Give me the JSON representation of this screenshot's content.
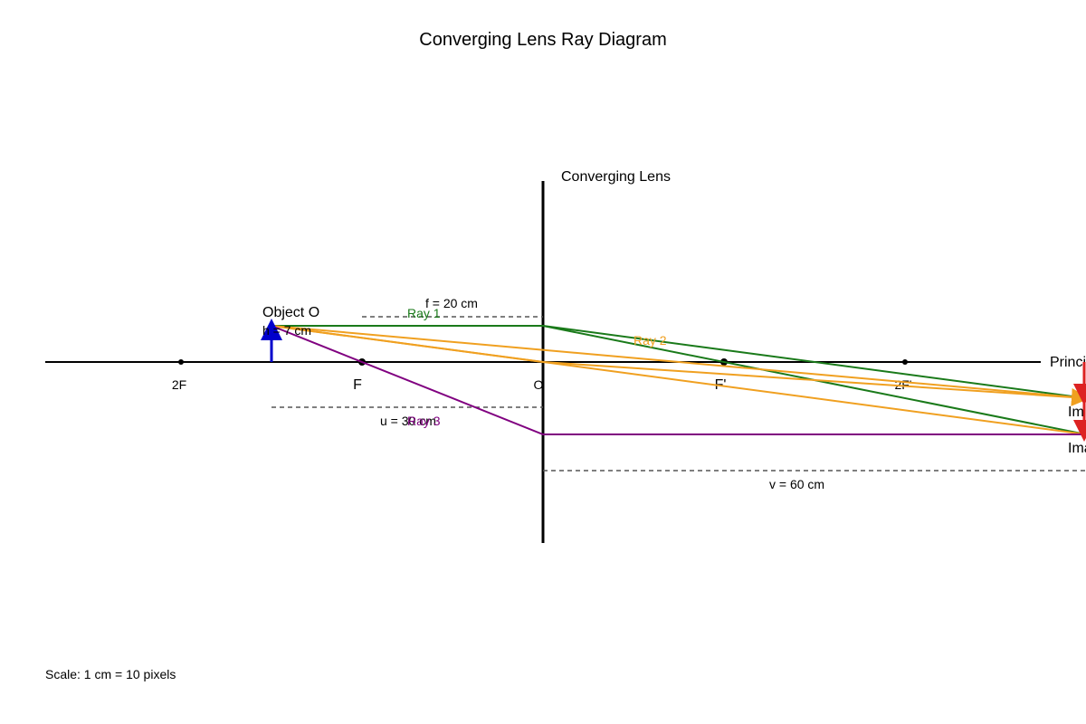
{
  "title": "Converging Lens Ray Diagram",
  "lens_label": "Converging Lens",
  "axis_label": "Principal Axis",
  "points": {
    "two_f": "2F",
    "f": "F",
    "optical_center": "O",
    "f_prime": "F'",
    "two_f_prime": "2F'"
  },
  "object": {
    "label": "Object O",
    "height_label": "h = 7 cm"
  },
  "images": {
    "upper": "Im",
    "lower": "Ima"
  },
  "rays": {
    "ray1": "Ray 1",
    "ray2": "Ray 2",
    "ray3": "Ray 3"
  },
  "dimensions": {
    "focal": "f = 20 cm",
    "object_distance": "u = 30 cm",
    "image_distance": "v = 60 cm"
  },
  "scale_note": "Scale: 1 cm = 10 pixels",
  "colors": {
    "axis": "#000000",
    "lens": "#000000",
    "object": "#0000cc",
    "image": "#dd2222",
    "ray1": "#1a7a1a",
    "ray2": "#f0a020",
    "ray3": "#800080",
    "dashed": "#555555"
  }
}
